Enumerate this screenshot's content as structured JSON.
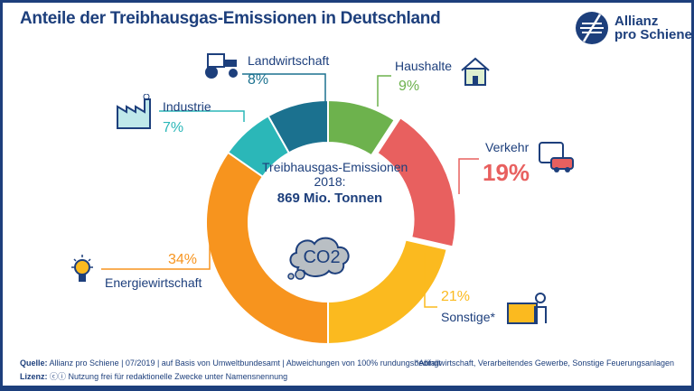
{
  "title": "Anteile der Treibhausgas-Emissionen in Deutschland",
  "logo": {
    "line1": "Allianz",
    "line2": "pro Schiene"
  },
  "chart_data": {
    "type": "pie",
    "title": "Anteile der Treibhausgas-Emissionen in Deutschland",
    "center_text": {
      "line1": "Treibhausgas-Emissionen",
      "line2": "2018:",
      "line3": "869 Mio. Tonnen",
      "icon_text": "CO2"
    },
    "slices": [
      {
        "name": "Haushalte",
        "value": 9,
        "label": "9%",
        "color": "#6db24d"
      },
      {
        "name": "Verkehr",
        "value": 19,
        "label": "19%",
        "color": "#e8605f"
      },
      {
        "name": "Sonstige*",
        "value": 21,
        "label": "21%",
        "color": "#fbba1f"
      },
      {
        "name": "Energiewirtschaft",
        "value": 34,
        "label": "34%",
        "color": "#f7941e"
      },
      {
        "name": "Industrie",
        "value": 7,
        "label": "7%",
        "color": "#2bb7b8"
      },
      {
        "name": "Landwirtschaft",
        "value": 8,
        "label": "8%",
        "color": "#1b718f"
      }
    ]
  },
  "footer": {
    "source_label": "Quelle:",
    "source": "Allianz pro Schiene | 07/2019 | auf Basis von Umweltbundesamt | Abweichungen von 100% rundungsbedingt",
    "license_label": "Lizenz:",
    "license": "Nutzung frei für redaktionelle Zwecke unter Namensnennung",
    "note": "*Abfallwirtschaft, Verarbeitendes Gewerbe, Sonstige Feuerungsanlagen"
  }
}
